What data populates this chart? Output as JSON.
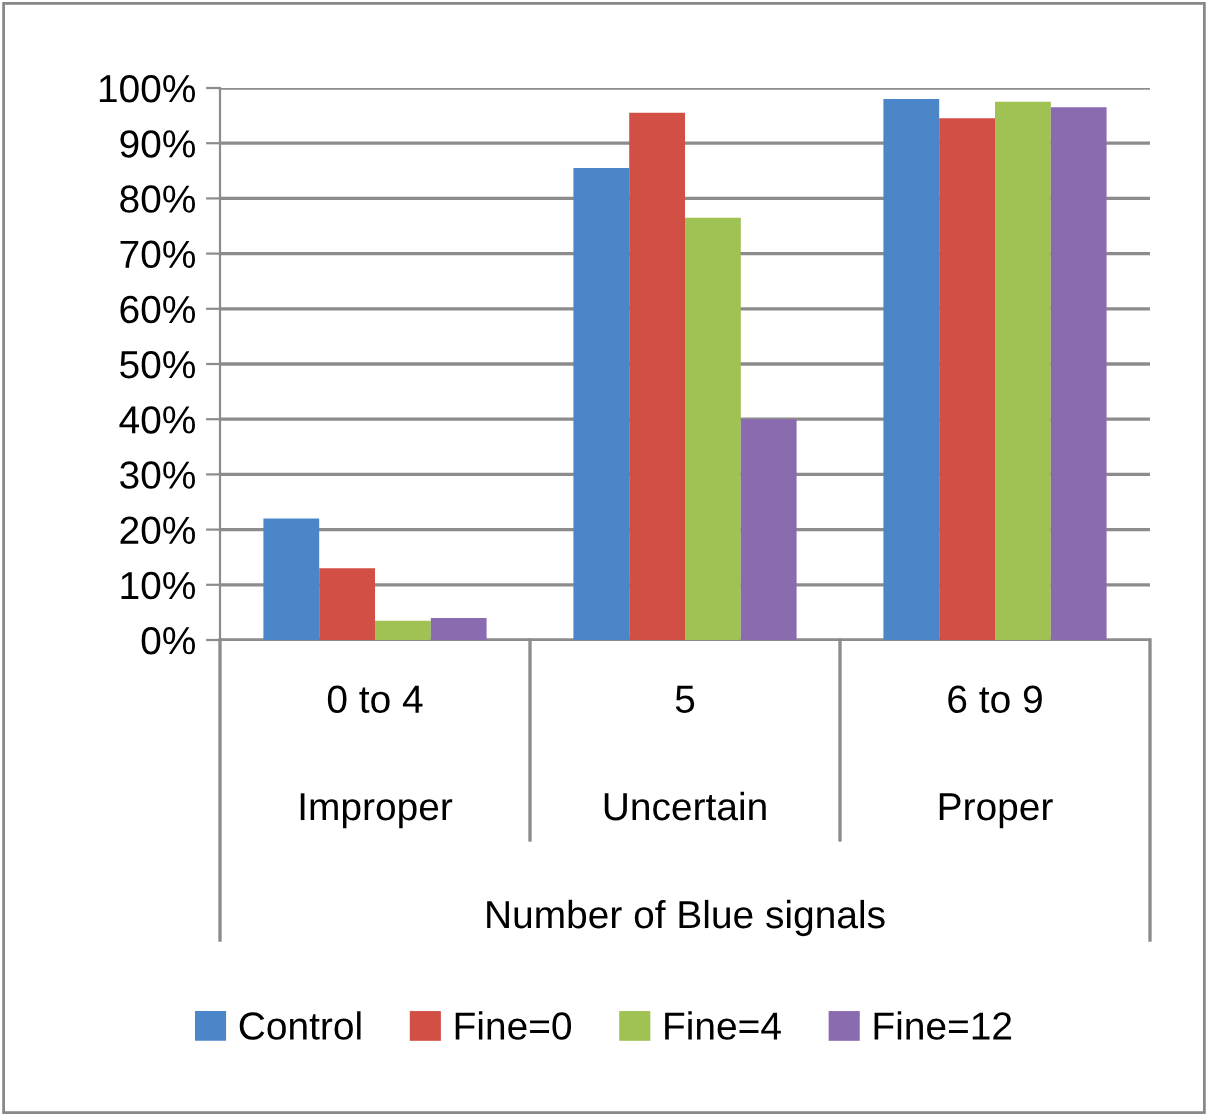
{
  "chart_data": {
    "type": "bar",
    "categories": [
      "0 to 4",
      "5",
      "6 to 9"
    ],
    "annotations": [
      "Improper",
      "Uncertain",
      "Proper"
    ],
    "xlabel": "Number of Blue signals",
    "series": [
      {
        "name": "Control",
        "color": "#4a86c8",
        "values": [
          22,
          85.5,
          98
        ]
      },
      {
        "name": "Fine=0",
        "color": "#d24f45",
        "values": [
          13,
          95.5,
          94.5
        ]
      },
      {
        "name": "Fine=4",
        "color": "#9fc252",
        "values": [
          3.5,
          76.5,
          97.5
        ]
      },
      {
        "name": "Fine=12",
        "color": "#8b6bb0",
        "values": [
          4,
          40,
          96.5
        ]
      }
    ],
    "ylim": [
      0,
      100
    ],
    "yticks": [
      {
        "value": 0,
        "label": "0%"
      },
      {
        "value": 10,
        "label": "10%"
      },
      {
        "value": 20,
        "label": "20%"
      },
      {
        "value": 30,
        "label": "30%"
      },
      {
        "value": 40,
        "label": "40%"
      },
      {
        "value": 50,
        "label": "50%"
      },
      {
        "value": 60,
        "label": "60%"
      },
      {
        "value": 70,
        "label": "70%"
      },
      {
        "value": 80,
        "label": "80%"
      },
      {
        "value": 90,
        "label": "90%"
      },
      {
        "value": 100,
        "label": "100%"
      }
    ],
    "grid": "y",
    "legend": "bottom"
  }
}
